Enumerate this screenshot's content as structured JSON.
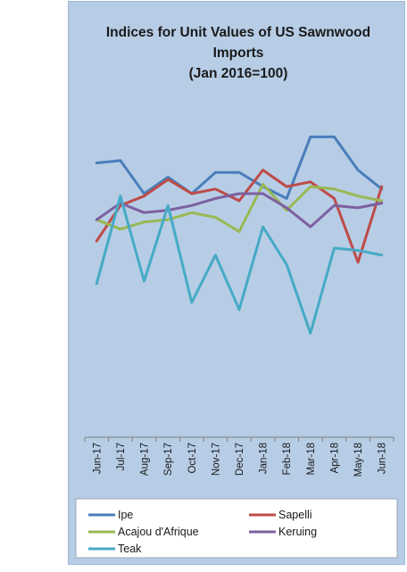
{
  "chart_data": {
    "type": "line",
    "title": [
      "Indices for Unit Values of US Sawnwood",
      "Imports",
      "(Jan 2016=100)"
    ],
    "xlabel": "",
    "ylabel": "",
    "ylim": [
      0,
      140
    ],
    "yticks": [
      0,
      20,
      40,
      60,
      80,
      100,
      120,
      140
    ],
    "categories": [
      "Jun-17",
      "Jul-17",
      "Aug-17",
      "Sep-17",
      "Oct-17",
      "Nov-17",
      "Dec-17",
      "Jan-18",
      "Feb-18",
      "Mar-18",
      "Apr-18",
      "May-18",
      "Jun-18"
    ],
    "grid": false,
    "legend_position": "bottom",
    "series": [
      {
        "name": "Ipe",
        "color": "#4a7ebb",
        "values": [
          116,
          117,
          103,
          110,
          103,
          112,
          112,
          106,
          101,
          127,
          127,
          113,
          105
        ]
      },
      {
        "name": "Sapelli",
        "color": "#be4b48",
        "values": [
          83,
          98,
          102,
          109,
          103,
          105,
          100,
          113,
          106,
          108,
          101,
          74,
          106
        ]
      },
      {
        "name": "Acajou d'Afrique",
        "color": "#98b954",
        "values": [
          92,
          88,
          91,
          92,
          95,
          93,
          87,
          107,
          96,
          106,
          105,
          102,
          100
        ]
      },
      {
        "name": "Keruing",
        "color": "#7d60a0",
        "values": [
          92,
          99,
          95,
          96,
          98,
          101,
          103,
          103,
          97,
          89,
          98,
          97,
          99
        ]
      },
      {
        "name": "Teak",
        "color": "#46aac5",
        "values": [
          65,
          102,
          66,
          98,
          57,
          77,
          54,
          89,
          73,
          44,
          80,
          79,
          77
        ]
      }
    ]
  }
}
